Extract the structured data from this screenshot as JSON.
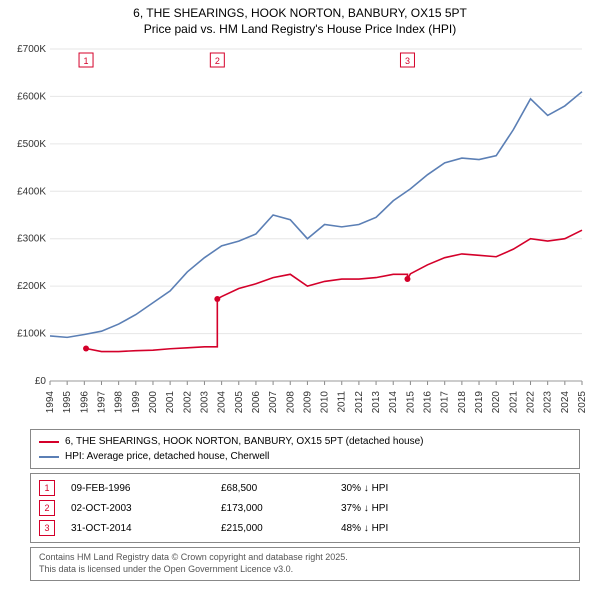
{
  "title": {
    "line1": "6, THE SHEARINGS, HOOK NORTON, BANBURY, OX15 5PT",
    "line2": "Price paid vs. HM Land Registry's House Price Index (HPI)"
  },
  "chart": {
    "type": "line",
    "background_color": "#ffffff",
    "grid_color": "#e6e6e6",
    "x_years": [
      1994,
      1995,
      1996,
      1997,
      1998,
      1999,
      2000,
      2001,
      2002,
      2003,
      2004,
      2005,
      2006,
      2007,
      2008,
      2009,
      2010,
      2011,
      2012,
      2013,
      2014,
      2015,
      2016,
      2017,
      2018,
      2019,
      2020,
      2021,
      2022,
      2023,
      2024,
      2025
    ],
    "y_ticks": [
      0,
      100000,
      200000,
      300000,
      400000,
      500000,
      600000,
      700000
    ],
    "y_tick_labels": [
      "£0",
      "£100K",
      "£200K",
      "£300K",
      "£400K",
      "£500K",
      "£600K",
      "£700K"
    ],
    "ylim": [
      0,
      700000
    ],
    "xlim": [
      1994,
      2025
    ],
    "axis_fontsize": 10,
    "series": [
      {
        "name": "price_paid",
        "color": "#d4002a",
        "line_width": 1.8,
        "x": [
          1996.1,
          1997,
          1998,
          1999,
          2000,
          2001,
          2002,
          2003,
          2003.75,
          2004,
          2005,
          2006,
          2007,
          2008,
          2009,
          2010,
          2011,
          2012,
          2013,
          2014,
          2014.83,
          2015,
          2016,
          2017,
          2018,
          2019,
          2020,
          2021,
          2022,
          2023,
          2024,
          2025
        ],
        "y": [
          68500,
          62000,
          62000,
          64000,
          65000,
          68000,
          70000,
          72000,
          173000,
          178000,
          195000,
          205000,
          218000,
          225000,
          200000,
          210000,
          215000,
          215000,
          218000,
          225000,
          215000,
          226000,
          245000,
          260000,
          268000,
          265000,
          262000,
          278000,
          300000,
          295000,
          300000,
          318000
        ],
        "step_drops": [
          [
            2003.75,
            72000,
            173000
          ],
          [
            2014.83,
            225000,
            215000
          ]
        ]
      },
      {
        "name": "hpi",
        "color": "#5b7fb5",
        "line_width": 1.4,
        "x": [
          1994,
          1995,
          1996,
          1997,
          1998,
          1999,
          2000,
          2001,
          2002,
          2003,
          2004,
          2005,
          2006,
          2007,
          2008,
          2009,
          2010,
          2011,
          2012,
          2013,
          2014,
          2015,
          2016,
          2017,
          2018,
          2019,
          2020,
          2021,
          2022,
          2023,
          2024,
          2025
        ],
        "y": [
          95000,
          92000,
          98000,
          105000,
          120000,
          140000,
          165000,
          190000,
          230000,
          260000,
          285000,
          295000,
          310000,
          350000,
          340000,
          300000,
          330000,
          325000,
          330000,
          345000,
          380000,
          405000,
          435000,
          460000,
          470000,
          467000,
          475000,
          530000,
          595000,
          560000,
          580000,
          610000
        ]
      }
    ],
    "event_markers": [
      {
        "n": "1",
        "year": 1996.1,
        "color": "#d4002a"
      },
      {
        "n": "2",
        "year": 2003.75,
        "color": "#d4002a"
      },
      {
        "n": "3",
        "year": 2014.83,
        "color": "#d4002a"
      }
    ]
  },
  "legend": {
    "items": [
      {
        "color": "#d4002a",
        "label": "6, THE SHEARINGS, HOOK NORTON, BANBURY, OX15 5PT (detached house)"
      },
      {
        "color": "#5b7fb5",
        "label": "HPI: Average price, detached house, Cherwell"
      }
    ]
  },
  "sales": {
    "rows": [
      {
        "n": "1",
        "color": "#d4002a",
        "date": "09-FEB-1996",
        "price": "£68,500",
        "diff": "30% ↓ HPI"
      },
      {
        "n": "2",
        "color": "#d4002a",
        "date": "02-OCT-2003",
        "price": "£173,000",
        "diff": "37% ↓ HPI"
      },
      {
        "n": "3",
        "color": "#d4002a",
        "date": "31-OCT-2014",
        "price": "£215,000",
        "diff": "48% ↓ HPI"
      }
    ]
  },
  "footer": {
    "line1": "Contains HM Land Registry data © Crown copyright and database right 2025.",
    "line2": "This data is licensed under the Open Government Licence v3.0."
  }
}
